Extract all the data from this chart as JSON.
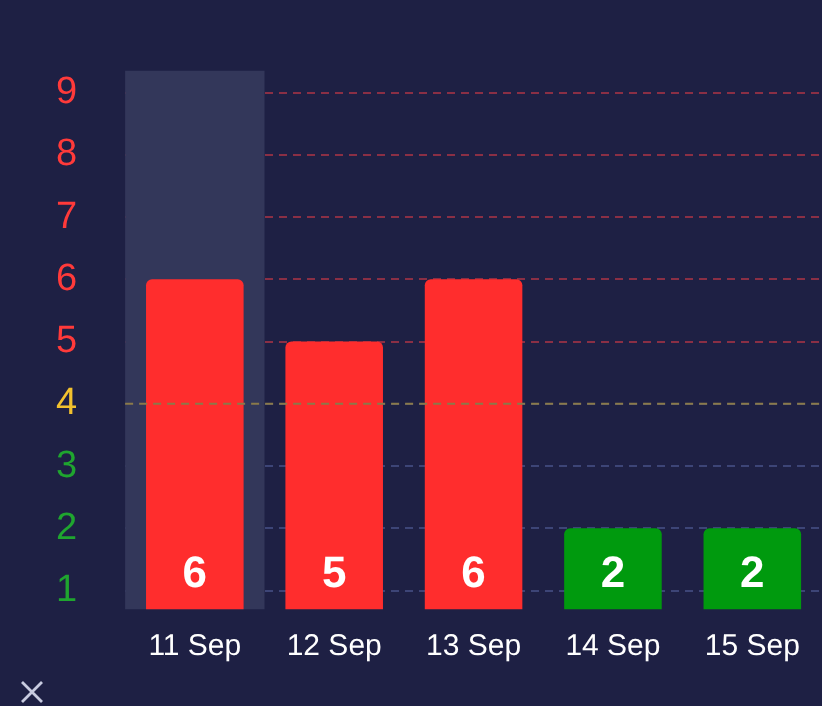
{
  "chart_data": {
    "type": "bar",
    "categories": [
      "11 Sep",
      "12 Sep",
      "13 Sep",
      "14 Sep",
      "15 Sep"
    ],
    "values": [
      6,
      5,
      6,
      2,
      2
    ],
    "data_labels": true,
    "ref_lines": [
      {
        "axis": "y",
        "value": 4,
        "color": "#8a7a4a",
        "line_style": "dashed"
      }
    ],
    "colors": [
      "#ff2d2d",
      "#ff2d2d",
      "#ff2d2d",
      "#009a0e",
      "#009a0e"
    ],
    "ylim": [
      0.7,
      9.35
    ],
    "yticks": [
      1,
      2,
      3,
      4,
      5,
      6,
      7,
      8,
      9
    ],
    "grid": "y",
    "legend": false,
    "bands": [
      {
        "axis": "x",
        "from": "11 Sep",
        "to": "11 Sep",
        "color": "#33375a"
      }
    ]
  }
}
